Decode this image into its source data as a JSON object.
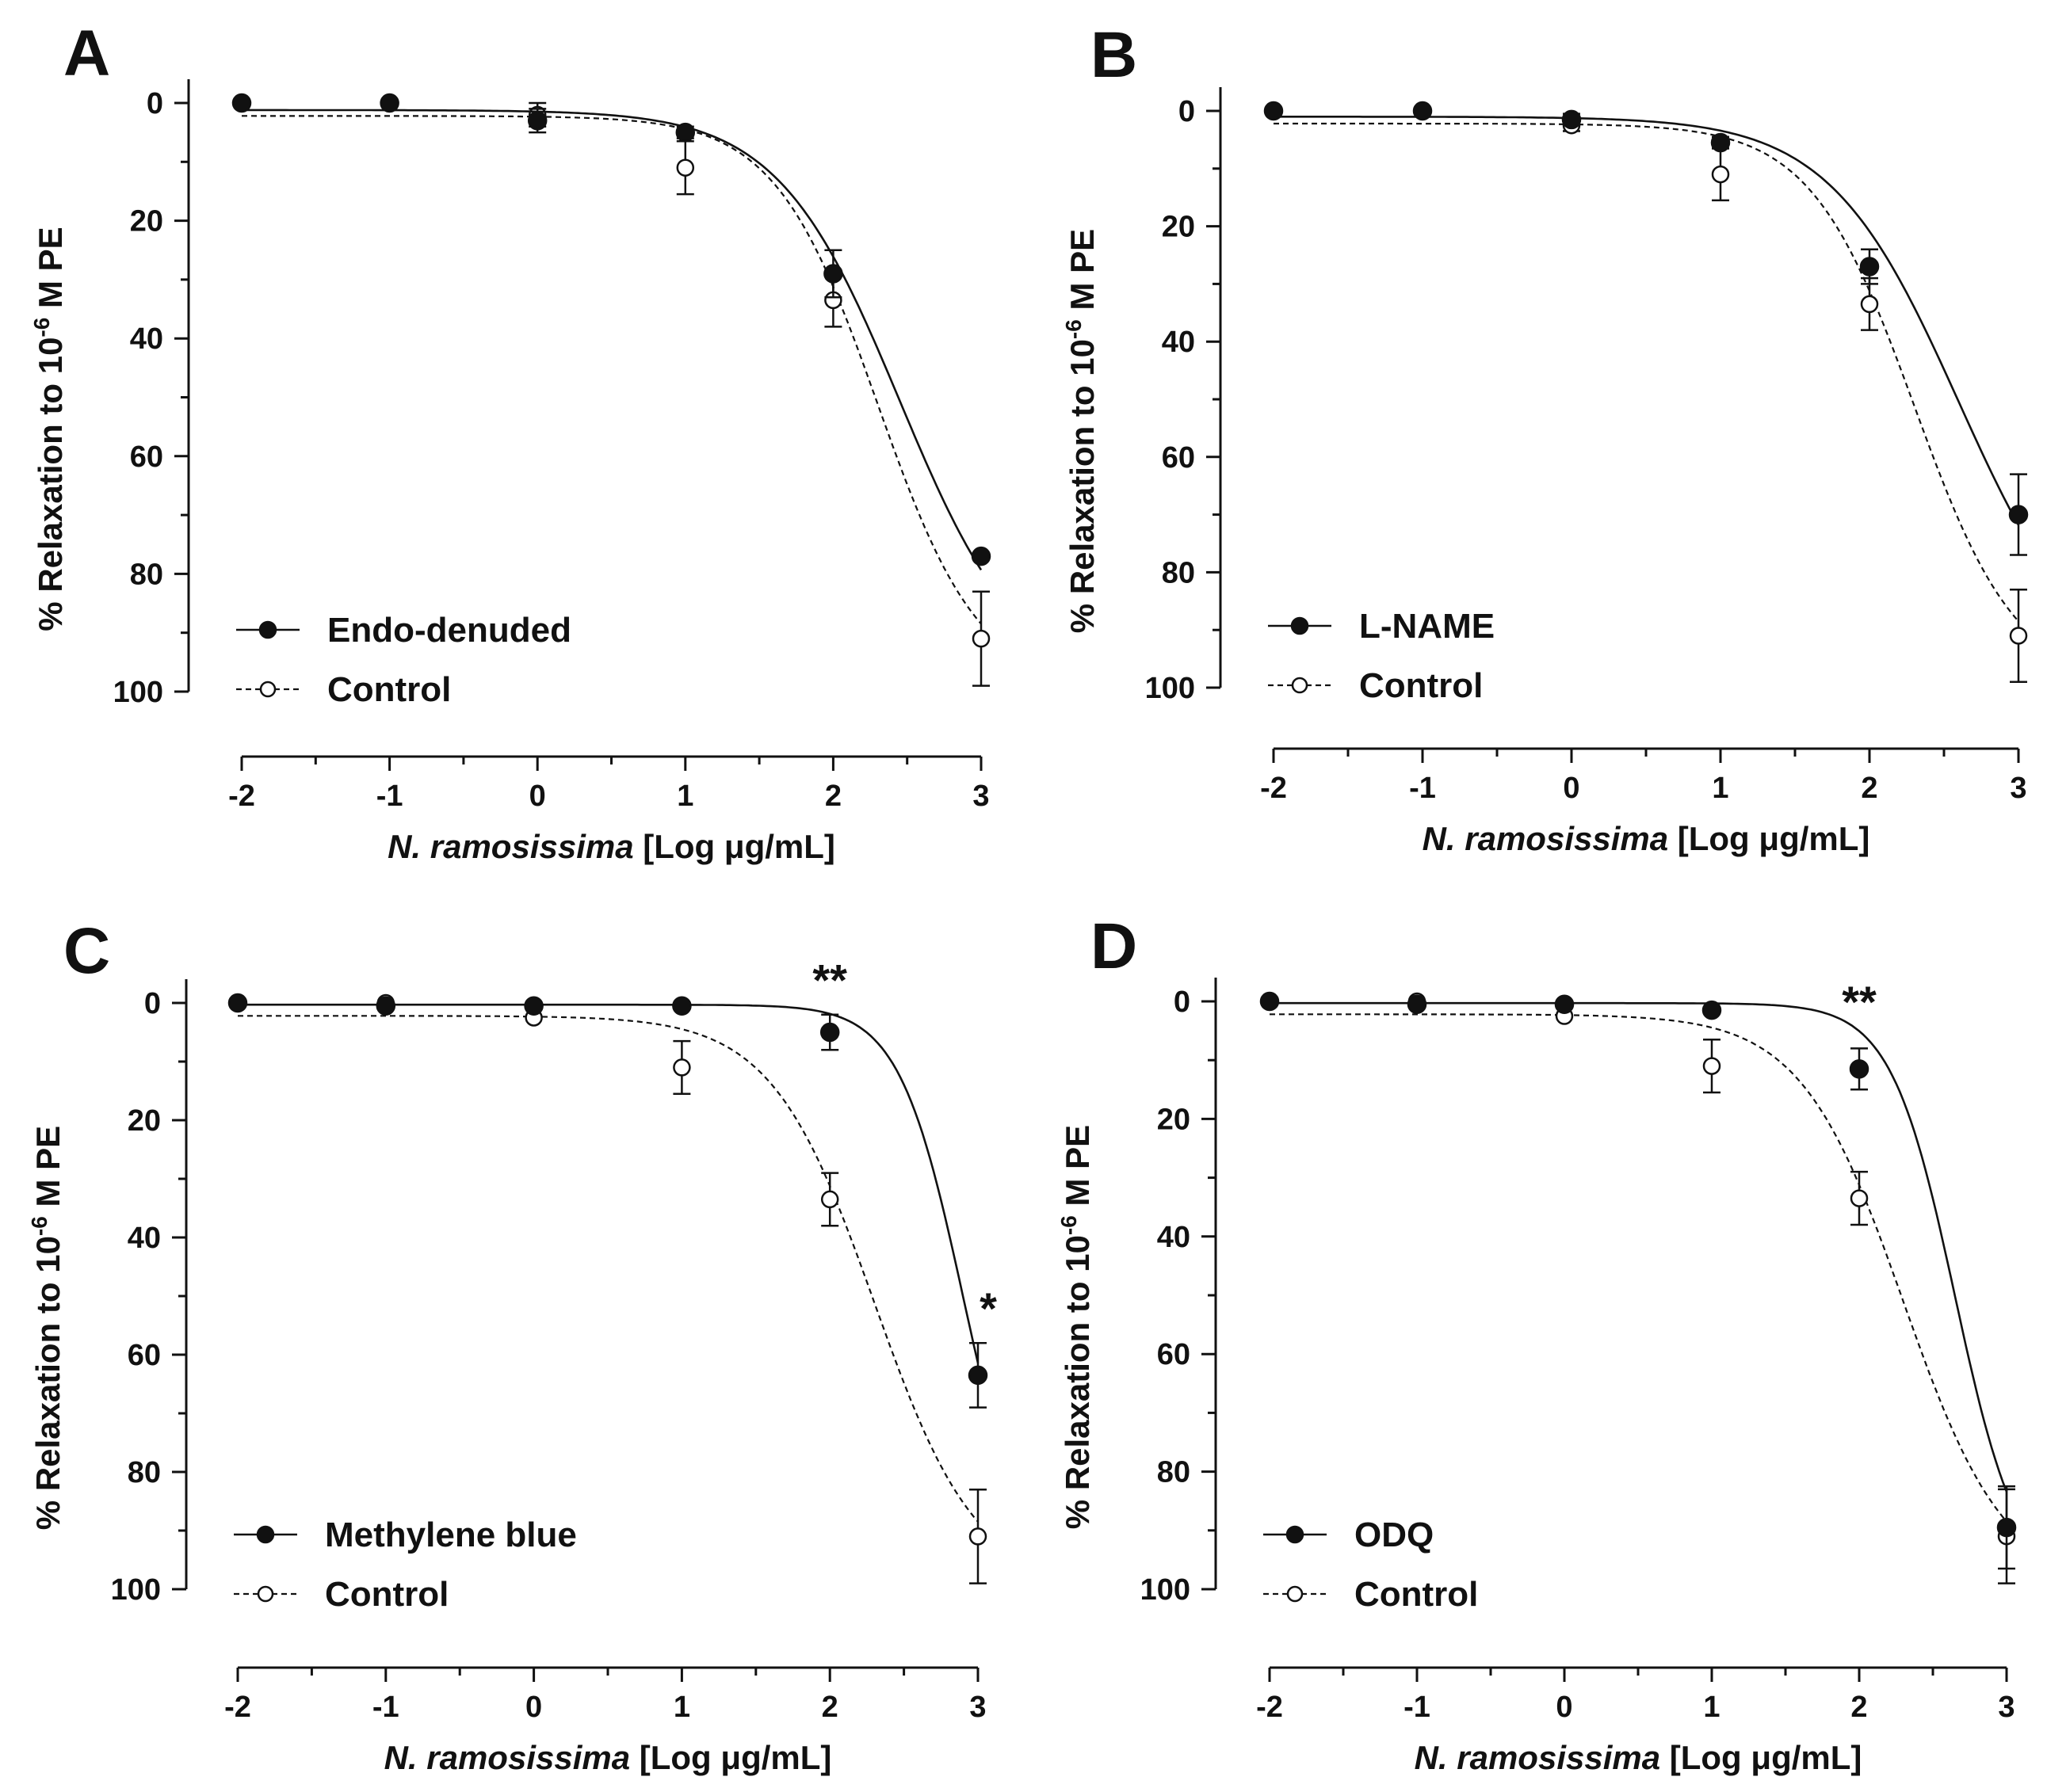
{
  "figure": {
    "x_axis_label": {
      "italic": "N. ramosissima",
      "rest": " [Log μg/mL]"
    },
    "y_axis_label": {
      "pre": "% Relaxation to 10",
      "sup": "-6",
      "post": " M PE"
    }
  },
  "chart_data": [
    {
      "panel": "A",
      "type": "line",
      "x_ticks": [
        "-2",
        "-1",
        "0",
        "1",
        "2",
        "3"
      ],
      "xlim": [
        -2,
        3
      ],
      "y_ticks": [
        "0",
        "20",
        "40",
        "60",
        "80",
        "100"
      ],
      "ylim": [
        0,
        100
      ],
      "y_inverted": true,
      "series": [
        {
          "name": "Endo-denuded",
          "style": "filled",
          "x": [
            -2,
            -1,
            0,
            1,
            2,
            3
          ],
          "y": [
            0,
            0,
            3,
            5,
            29,
            77
          ],
          "err": [
            0,
            0,
            2,
            1,
            4,
            0
          ],
          "fit": {
            "bottom": 1.2,
            "top": 100,
            "logEC50": 2.45,
            "hill": 1.05
          }
        },
        {
          "name": "Control",
          "style": "open",
          "x": [
            -2,
            -1,
            0,
            1,
            2,
            3
          ],
          "y": [
            0,
            0,
            2,
            11,
            33.5,
            91
          ],
          "err": [
            0,
            0,
            2,
            4.5,
            4.5,
            8
          ],
          "fit": {
            "bottom": 2.2,
            "top": 100,
            "logEC50": 2.3,
            "hill": 1.25
          }
        }
      ],
      "legend": {
        "position": "bottom-left"
      },
      "annotations": []
    },
    {
      "panel": "B",
      "type": "line",
      "x_ticks": [
        "-2",
        "-1",
        "0",
        "1",
        "2",
        "3"
      ],
      "xlim": [
        -2,
        3
      ],
      "y_ticks": [
        "0",
        "20",
        "40",
        "60",
        "80",
        "100"
      ],
      "ylim": [
        0,
        100
      ],
      "y_inverted": true,
      "series": [
        {
          "name": "L-NAME",
          "style": "filled",
          "x": [
            -2,
            -1,
            0,
            1,
            2,
            3
          ],
          "y": [
            0,
            0,
            1.5,
            5.5,
            27,
            70
          ],
          "err": [
            0,
            0,
            1,
            1,
            3,
            7
          ],
          "fit": {
            "bottom": 1.0,
            "top": 100,
            "logEC50": 2.6,
            "hill": 1.0
          }
        },
        {
          "name": "Control",
          "style": "open",
          "x": [
            -2,
            -1,
            0,
            1,
            2,
            3
          ],
          "y": [
            0,
            0,
            2.5,
            11,
            33.5,
            91
          ],
          "err": [
            0,
            0,
            1,
            4.5,
            4.5,
            8
          ],
          "fit": {
            "bottom": 2.2,
            "top": 100,
            "logEC50": 2.3,
            "hill": 1.25
          }
        }
      ],
      "legend": {
        "position": "bottom-left"
      },
      "annotations": []
    },
    {
      "panel": "C",
      "type": "line",
      "x_ticks": [
        "-2",
        "-1",
        "0",
        "1",
        "2",
        "3"
      ],
      "xlim": [
        -2,
        3
      ],
      "y_ticks": [
        "0",
        "20",
        "40",
        "60",
        "80",
        "100"
      ],
      "ylim": [
        0,
        100
      ],
      "y_inverted": true,
      "series": [
        {
          "name": "Methylene blue",
          "style": "filled",
          "x": [
            -2,
            -1,
            0,
            1,
            2,
            3
          ],
          "y": [
            0,
            0.5,
            0.5,
            0.5,
            5,
            63.5
          ],
          "err": [
            0,
            0,
            0,
            0,
            3,
            5.5
          ],
          "fit": {
            "bottom": 0.3,
            "top": 100,
            "logEC50": 2.9,
            "hill": 2.0
          }
        },
        {
          "name": "Control",
          "style": "open",
          "x": [
            -2,
            -1,
            0,
            1,
            2,
            3
          ],
          "y": [
            0,
            0,
            2.5,
            11,
            33.5,
            91
          ],
          "err": [
            0,
            0,
            0,
            4.5,
            4.5,
            8
          ],
          "fit": {
            "bottom": 2.2,
            "top": 100,
            "logEC50": 2.3,
            "hill": 1.25
          }
        }
      ],
      "legend": {
        "position": "bottom-left"
      },
      "annotations": [
        {
          "text": "**",
          "x": 2,
          "y": -4
        },
        {
          "text": "*",
          "x": 3.07,
          "y": 52
        }
      ]
    },
    {
      "panel": "D",
      "type": "line",
      "x_ticks": [
        "-2",
        "-1",
        "0",
        "1",
        "2",
        "3"
      ],
      "xlim": [
        -2,
        3
      ],
      "y_ticks": [
        "0",
        "20",
        "40",
        "60",
        "80",
        "100"
      ],
      "ylim": [
        0,
        100
      ],
      "y_inverted": true,
      "series": [
        {
          "name": "ODQ",
          "style": "filled",
          "x": [
            -2,
            -1,
            0,
            1,
            2,
            3
          ],
          "y": [
            0,
            0.5,
            0.5,
            1.5,
            11.5,
            89.5
          ],
          "err": [
            0,
            0,
            0,
            0,
            3.5,
            7
          ],
          "fit": {
            "bottom": 0.3,
            "top": 100,
            "logEC50": 2.65,
            "hill": 2.0
          }
        },
        {
          "name": "Control",
          "style": "open",
          "x": [
            -2,
            -1,
            0,
            1,
            2,
            3
          ],
          "y": [
            0,
            0,
            2.5,
            11,
            33.5,
            91
          ],
          "err": [
            0,
            0,
            0,
            4.5,
            4.5,
            8
          ],
          "fit": {
            "bottom": 2.2,
            "top": 100,
            "logEC50": 2.3,
            "hill": 1.25
          }
        }
      ],
      "legend": {
        "position": "bottom-left"
      },
      "annotations": [
        {
          "text": "**",
          "x": 2,
          "y": 0
        }
      ]
    }
  ]
}
